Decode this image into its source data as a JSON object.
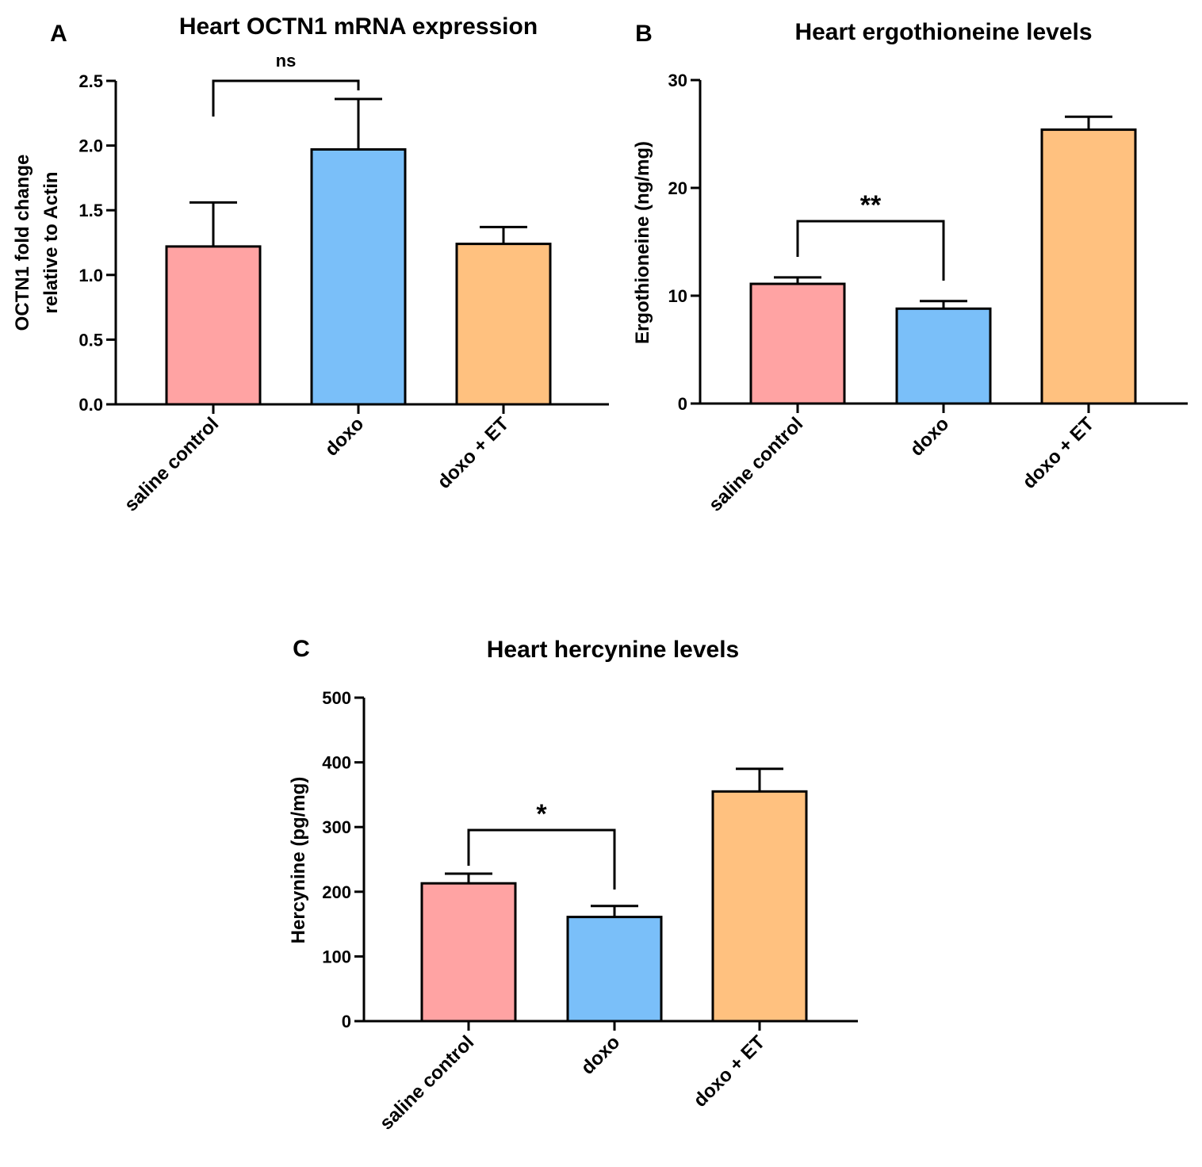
{
  "chart_data": [
    {
      "panel": "A",
      "type": "bar",
      "title": "Heart OCTN1 mRNA expression",
      "ylabel_lines": [
        "OCTN1 fold change",
        "relative to Actin"
      ],
      "categories": [
        "saline control",
        "doxo",
        "doxo + ET"
      ],
      "values": [
        1.22,
        1.97,
        1.24
      ],
      "errors": [
        0.34,
        0.39,
        0.13
      ],
      "colors": [
        "#ffa3a3",
        "#7abff9",
        "#ffc17f"
      ],
      "ylim": [
        0,
        2.5
      ],
      "yticks": [
        "0.0",
        "0.5",
        "1.0",
        "1.5",
        "2.0",
        "2.5"
      ],
      "ytick_values": [
        0,
        0.5,
        1.0,
        1.5,
        2.0,
        2.5
      ],
      "significance": {
        "from": 0,
        "to": 1,
        "label": "ns"
      }
    },
    {
      "panel": "B",
      "type": "bar",
      "title": "Heart ergothioneine levels",
      "ylabel_lines": [
        "Ergothioneine  (ng/mg)"
      ],
      "categories": [
        "saline control",
        "doxo",
        "doxo + ET"
      ],
      "values": [
        11.1,
        8.8,
        25.4
      ],
      "errors": [
        0.6,
        0.7,
        1.2
      ],
      "colors": [
        "#ffa3a3",
        "#7abff9",
        "#ffc17f"
      ],
      "ylim": [
        0,
        30
      ],
      "yticks": [
        "0",
        "10",
        "20",
        "30"
      ],
      "ytick_values": [
        0,
        10,
        20,
        30
      ],
      "significance": {
        "from": 0,
        "to": 1,
        "label": "**"
      }
    },
    {
      "panel": "C",
      "type": "bar",
      "title": "Heart hercynine levels",
      "ylabel_lines": [
        "Hercynine  (pg/mg)"
      ],
      "categories": [
        "saline control",
        "doxo",
        "doxo + ET"
      ],
      "values": [
        213,
        161,
        355
      ],
      "errors": [
        15,
        17,
        35
      ],
      "colors": [
        "#ffa3a3",
        "#7abff9",
        "#ffc17f"
      ],
      "ylim": [
        0,
        500
      ],
      "yticks": [
        "0",
        "100",
        "200",
        "300",
        "400",
        "500"
      ],
      "ytick_values": [
        0,
        100,
        200,
        300,
        400,
        500
      ],
      "significance": {
        "from": 0,
        "to": 1,
        "label": "*"
      }
    }
  ]
}
